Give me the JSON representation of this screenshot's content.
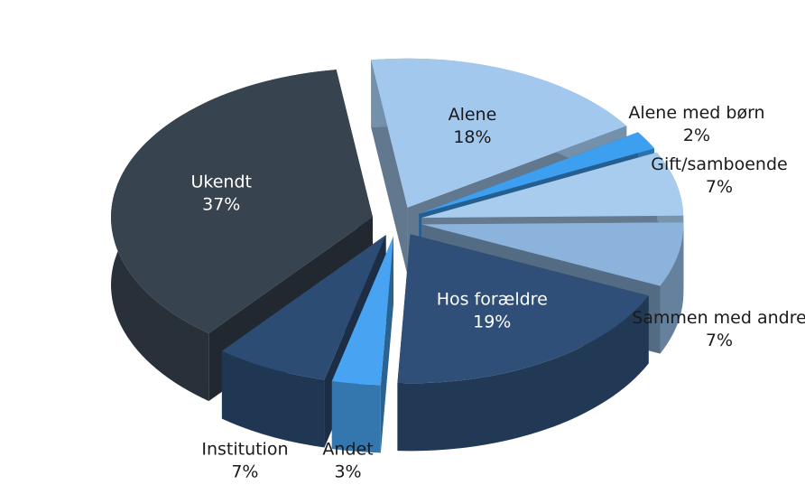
{
  "chart_data": {
    "type": "pie3d",
    "categories": [
      "Alene",
      "Alene med børn",
      "Gift/samboende",
      "Sammen med andre",
      "Hos forældre",
      "Andet",
      "Institution",
      "Ukendt"
    ],
    "values": [
      18,
      2,
      7,
      7,
      19,
      3,
      7,
      37
    ],
    "value_labels": [
      "18%",
      "2%",
      "7%",
      "7%",
      "19%",
      "3%",
      "7%",
      "37%"
    ],
    "colors": [
      "#a3c8ee",
      "#3d9ff0",
      "#a8ccee",
      "#8cb3dc",
      "#2f4f78",
      "#48a4f2",
      "#2d4c73",
      "#37434f"
    ]
  }
}
